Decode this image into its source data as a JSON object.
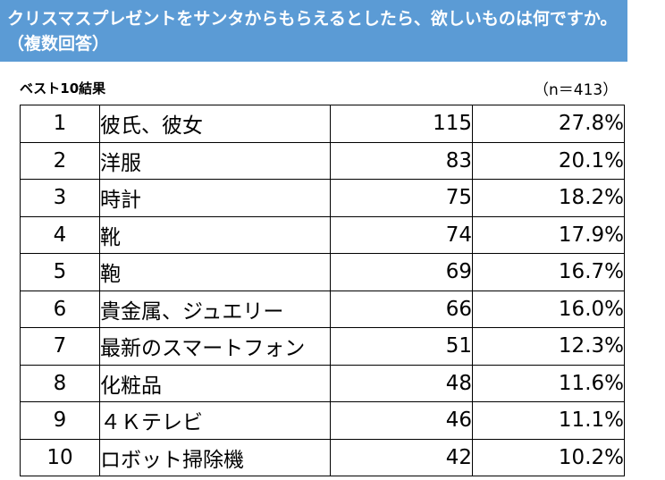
{
  "title": {
    "line1": "クリスマスプレゼントをサンタからもらえるとしたら、欲しいものは何ですか。",
    "line2": "（複数回答）"
  },
  "subtitle": "ベスト10結果",
  "sample_size": "（n＝413）",
  "rows": [
    {
      "rank": "1",
      "item": "彼氏、彼女",
      "count": "115",
      "pct": "27.8%"
    },
    {
      "rank": "2",
      "item": "洋服",
      "count": "83",
      "pct": "20.1%"
    },
    {
      "rank": "3",
      "item": "時計",
      "count": "75",
      "pct": "18.2%"
    },
    {
      "rank": "4",
      "item": "靴",
      "count": "74",
      "pct": "17.9%"
    },
    {
      "rank": "5",
      "item": "鞄",
      "count": "69",
      "pct": "16.7%"
    },
    {
      "rank": "6",
      "item": "貴金属、ジュエリー",
      "count": "66",
      "pct": "16.0%"
    },
    {
      "rank": "7",
      "item": "最新のスマートフォン",
      "count": "51",
      "pct": "12.3%"
    },
    {
      "rank": "8",
      "item": "化粧品",
      "count": "48",
      "pct": "11.6%"
    },
    {
      "rank": "9",
      "item": "４Ｋテレビ",
      "count": "46",
      "pct": "11.1%"
    },
    {
      "rank": "10",
      "item": "ロボット掃除機",
      "count": "42",
      "pct": "10.2%"
    }
  ],
  "colors": {
    "banner": "#5b9bd5",
    "banner_text": "#ffffff"
  }
}
